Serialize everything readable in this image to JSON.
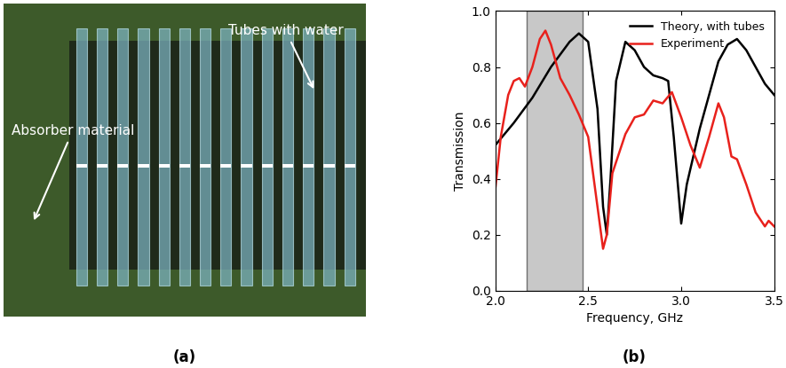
{
  "photo": {
    "label": "(a)",
    "annotations": [
      "Tubes with water",
      "Absorber material"
    ]
  },
  "chart_data": {
    "type": "line",
    "caption": "(b)",
    "x_label": "Frequency, GHz",
    "y_label": "Transmission",
    "xlim": [
      2.0,
      3.5
    ],
    "xticks": [
      2.0,
      2.5,
      3.0,
      3.5
    ],
    "ylim": [
      0.0,
      1.0
    ],
    "yticks": [
      0.0,
      0.2,
      0.4,
      0.6,
      0.8,
      1.0
    ],
    "shaded_region": [
      2.17,
      2.47
    ],
    "legend": "upper right",
    "grid": false,
    "series": [
      {
        "name": "Theory, with tubes",
        "color": "#000000",
        "x": [
          2.0,
          2.1,
          2.2,
          2.3,
          2.4,
          2.45,
          2.5,
          2.55,
          2.58,
          2.6,
          2.62,
          2.65,
          2.7,
          2.75,
          2.8,
          2.85,
          2.9,
          2.93,
          2.96,
          3.0,
          3.03,
          3.1,
          3.15,
          3.2,
          3.25,
          3.3,
          3.35,
          3.4,
          3.45,
          3.5
        ],
        "values": [
          0.52,
          0.6,
          0.69,
          0.8,
          0.89,
          0.92,
          0.89,
          0.65,
          0.3,
          0.2,
          0.4,
          0.75,
          0.89,
          0.86,
          0.8,
          0.77,
          0.76,
          0.75,
          0.55,
          0.24,
          0.38,
          0.58,
          0.7,
          0.82,
          0.88,
          0.9,
          0.86,
          0.8,
          0.74,
          0.7
        ]
      },
      {
        "name": "Experiment",
        "color": "#e8211c",
        "x": [
          2.0,
          2.03,
          2.07,
          2.1,
          2.13,
          2.16,
          2.2,
          2.24,
          2.27,
          2.3,
          2.35,
          2.4,
          2.45,
          2.5,
          2.55,
          2.58,
          2.6,
          2.63,
          2.7,
          2.75,
          2.8,
          2.85,
          2.9,
          2.95,
          3.0,
          3.05,
          3.1,
          3.15,
          3.2,
          3.23,
          3.27,
          3.3,
          3.35,
          3.4,
          3.45,
          3.47,
          3.5
        ],
        "values": [
          0.36,
          0.55,
          0.7,
          0.75,
          0.76,
          0.73,
          0.8,
          0.9,
          0.93,
          0.88,
          0.76,
          0.7,
          0.63,
          0.55,
          0.3,
          0.15,
          0.2,
          0.42,
          0.56,
          0.62,
          0.63,
          0.68,
          0.67,
          0.71,
          0.62,
          0.52,
          0.44,
          0.55,
          0.67,
          0.62,
          0.48,
          0.47,
          0.38,
          0.28,
          0.23,
          0.25,
          0.23
        ]
      }
    ]
  }
}
